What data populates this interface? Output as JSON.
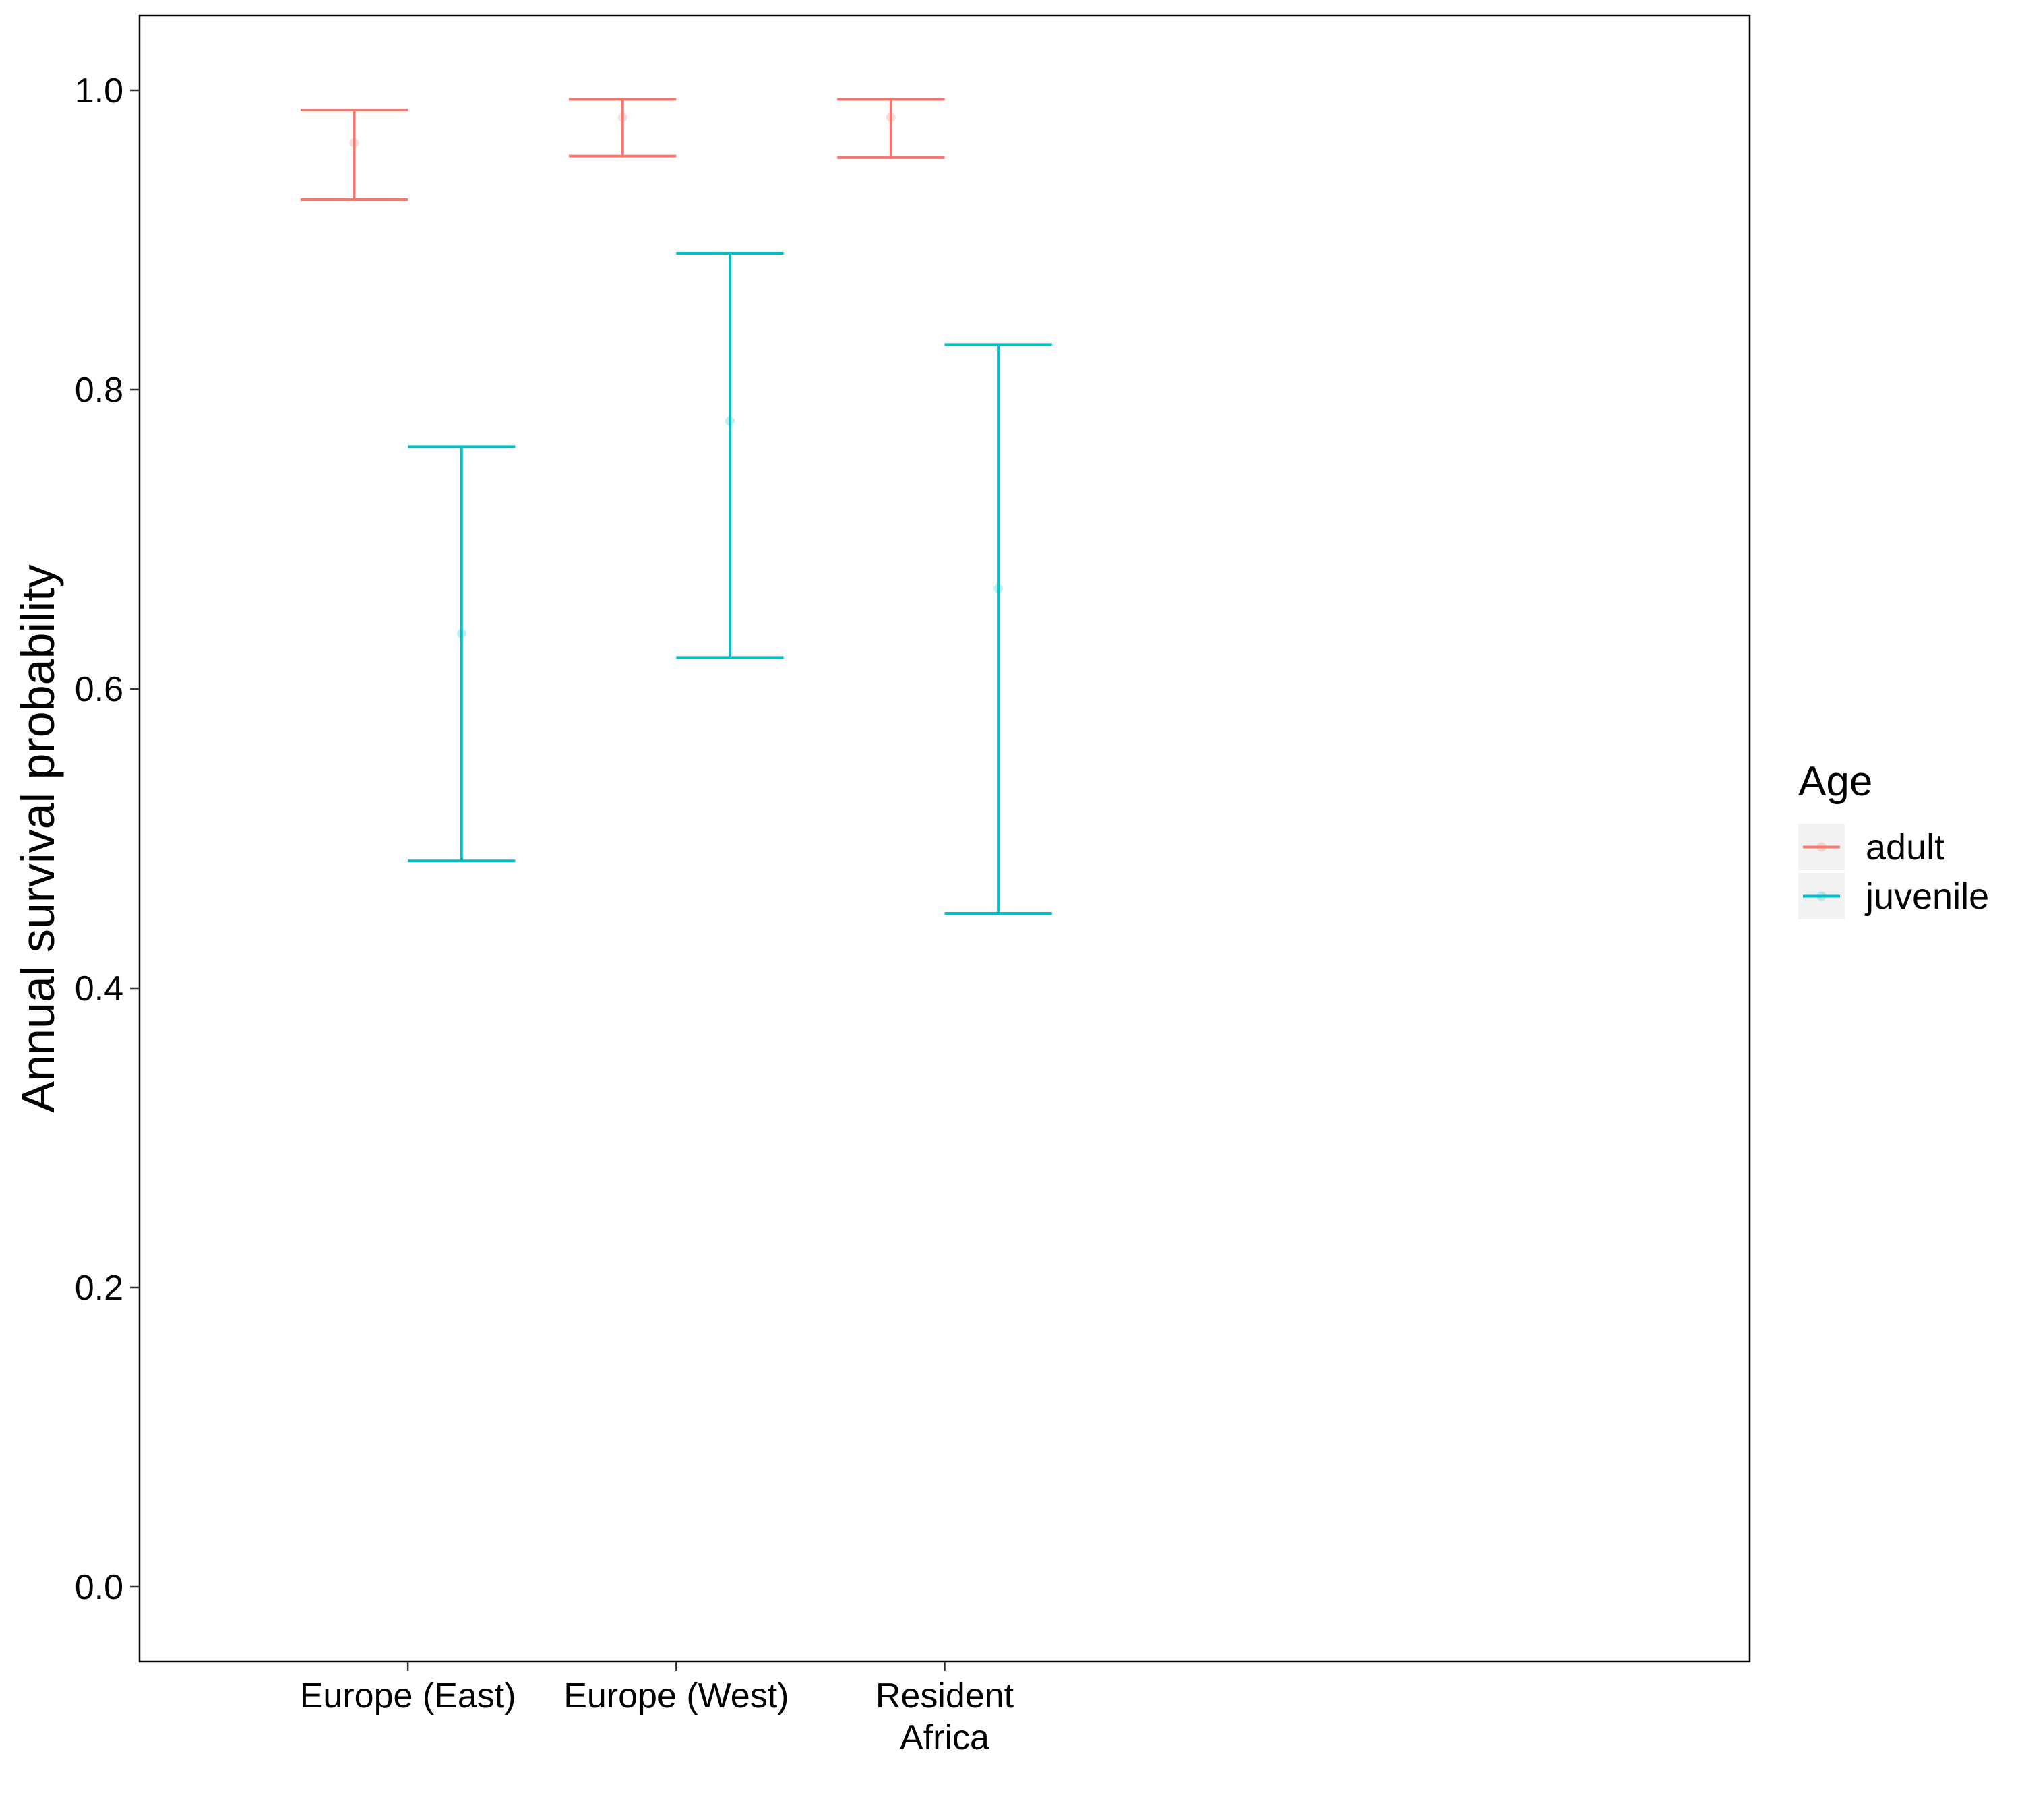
{
  "chart_data": {
    "type": "scatter",
    "title": "",
    "xlabel": "",
    "ylabel": "Annual survival probability",
    "ylim": [
      -0.05,
      1.05
    ],
    "yticks": [
      "0.0",
      "0.2",
      "0.4",
      "0.6",
      "0.8",
      "1.0"
    ],
    "categories": [
      {
        "lines": [
          "Europe (East)"
        ]
      },
      {
        "lines": [
          "Europe (West)"
        ]
      },
      {
        "lines": [
          "Resident",
          "Africa"
        ]
      }
    ],
    "grid": false,
    "legend": {
      "title": "Age",
      "placement": "right"
    },
    "series": [
      {
        "name": "adult",
        "color": "#F8766D",
        "points": [
          {
            "category": 0,
            "y": 0.965,
            "lower": 0.927,
            "upper": 0.987
          },
          {
            "category": 1,
            "y": 0.982,
            "lower": 0.956,
            "upper": 0.994
          },
          {
            "category": 2,
            "y": 0.982,
            "lower": 0.955,
            "upper": 0.994
          }
        ]
      },
      {
        "name": "juvenile",
        "color": "#00BFC4",
        "points": [
          {
            "category": 0,
            "y": 0.637,
            "lower": 0.485,
            "upper": 0.762
          },
          {
            "category": 1,
            "y": 0.779,
            "lower": 0.621,
            "upper": 0.891
          },
          {
            "category": 2,
            "y": 0.667,
            "lower": 0.45,
            "upper": 0.83
          }
        ]
      }
    ]
  }
}
